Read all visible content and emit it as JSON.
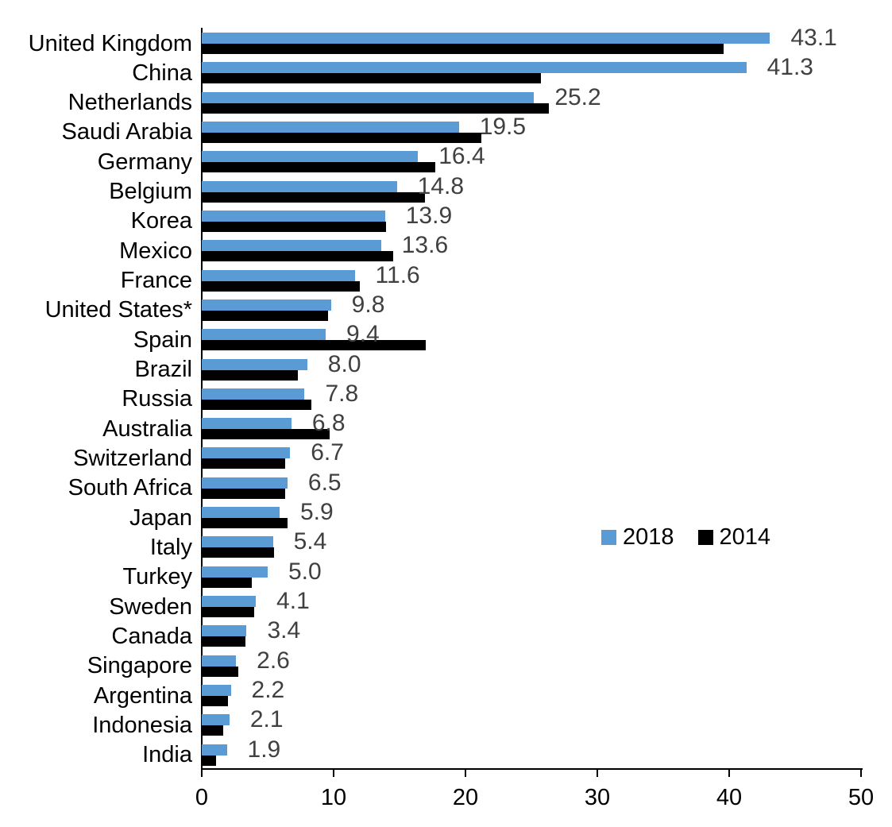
{
  "chart_data": {
    "type": "bar",
    "orientation": "horizontal",
    "title": "",
    "xlabel": "",
    "ylabel": "",
    "xlim": [
      0,
      50
    ],
    "x_ticks": [
      0,
      10,
      20,
      30,
      40,
      50
    ],
    "grid": false,
    "categories": [
      "United Kingdom",
      "China",
      "Netherlands",
      "Saudi Arabia",
      "Germany",
      "Belgium",
      "Korea",
      "Mexico",
      "France",
      "United States*",
      "Spain",
      "Brazil",
      "Russia",
      "Australia",
      "Switzerland",
      "South Africa",
      "Japan",
      "Italy",
      "Turkey",
      "Sweden",
      "Canada",
      "Singapore",
      "Argentina",
      "Indonesia",
      "India"
    ],
    "series": [
      {
        "name": "2018",
        "color": "#5B9BD5",
        "values": [
          43.1,
          41.3,
          25.2,
          19.5,
          16.4,
          14.8,
          13.9,
          13.6,
          11.6,
          9.8,
          9.4,
          8.0,
          7.8,
          6.8,
          6.7,
          6.5,
          5.9,
          5.4,
          5.0,
          4.1,
          3.4,
          2.6,
          2.2,
          2.1,
          1.9
        ]
      },
      {
        "name": "2014",
        "color": "#000000",
        "values": [
          39.6,
          25.7,
          26.3,
          21.2,
          17.7,
          16.9,
          14.0,
          14.5,
          12.0,
          9.6,
          17.0,
          7.3,
          8.3,
          9.7,
          6.3,
          6.3,
          6.5,
          5.5,
          3.8,
          4.0,
          3.3,
          2.8,
          2.0,
          1.6,
          1.1
        ]
      }
    ],
    "value_labels": [
      "43.1",
      "41.3",
      "25.2",
      "19.5",
      "16.4",
      "14.8",
      "13.9",
      "13.6",
      "11.6",
      "9.8",
      "9.4",
      "8.0",
      "7.8",
      "6.8",
      "6.7",
      "6.5",
      "5.9",
      "5.4",
      "5.0",
      "4.1",
      "3.4",
      "2.6",
      "2.2",
      "2.1",
      "1.9"
    ],
    "value_label_series": "2018",
    "value_label_color": "#404040",
    "axis_color": "#000000",
    "text_color": "#000000",
    "legend": {
      "position": "middle-right",
      "entries": [
        "2018",
        "2014"
      ]
    }
  }
}
